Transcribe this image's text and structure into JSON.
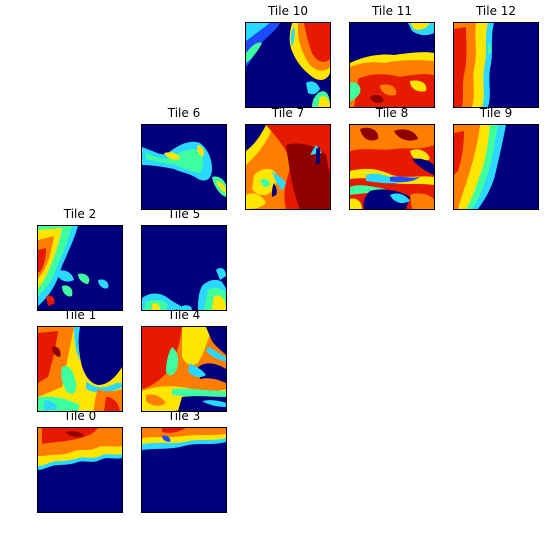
{
  "chart_data": {
    "type": "heatmap",
    "colormap": "jet",
    "colors": {
      "ocean": "#00007f",
      "deep": "#0000c8",
      "blue": "#1f4bff",
      "cyan": "#29d9ff",
      "green": "#40ff9f",
      "yellow": "#ffe600",
      "orange": "#ff7d00",
      "red": "#e61a00",
      "darkred": "#8f0000"
    },
    "tiles": [
      {
        "id": 0,
        "title": "Tile 0"
      },
      {
        "id": 1,
        "title": "Tile 1"
      },
      {
        "id": 2,
        "title": "Tile 2"
      },
      {
        "id": 3,
        "title": "Tile 3"
      },
      {
        "id": 4,
        "title": "Tile 4"
      },
      {
        "id": 5,
        "title": "Tile 5"
      },
      {
        "id": 6,
        "title": "Tile 6"
      },
      {
        "id": 7,
        "title": "Tile 7"
      },
      {
        "id": 8,
        "title": "Tile 8"
      },
      {
        "id": 9,
        "title": "Tile 9"
      },
      {
        "id": 10,
        "title": "Tile 10"
      },
      {
        "id": 11,
        "title": "Tile 11"
      },
      {
        "id": 12,
        "title": "Tile 12"
      }
    ]
  }
}
